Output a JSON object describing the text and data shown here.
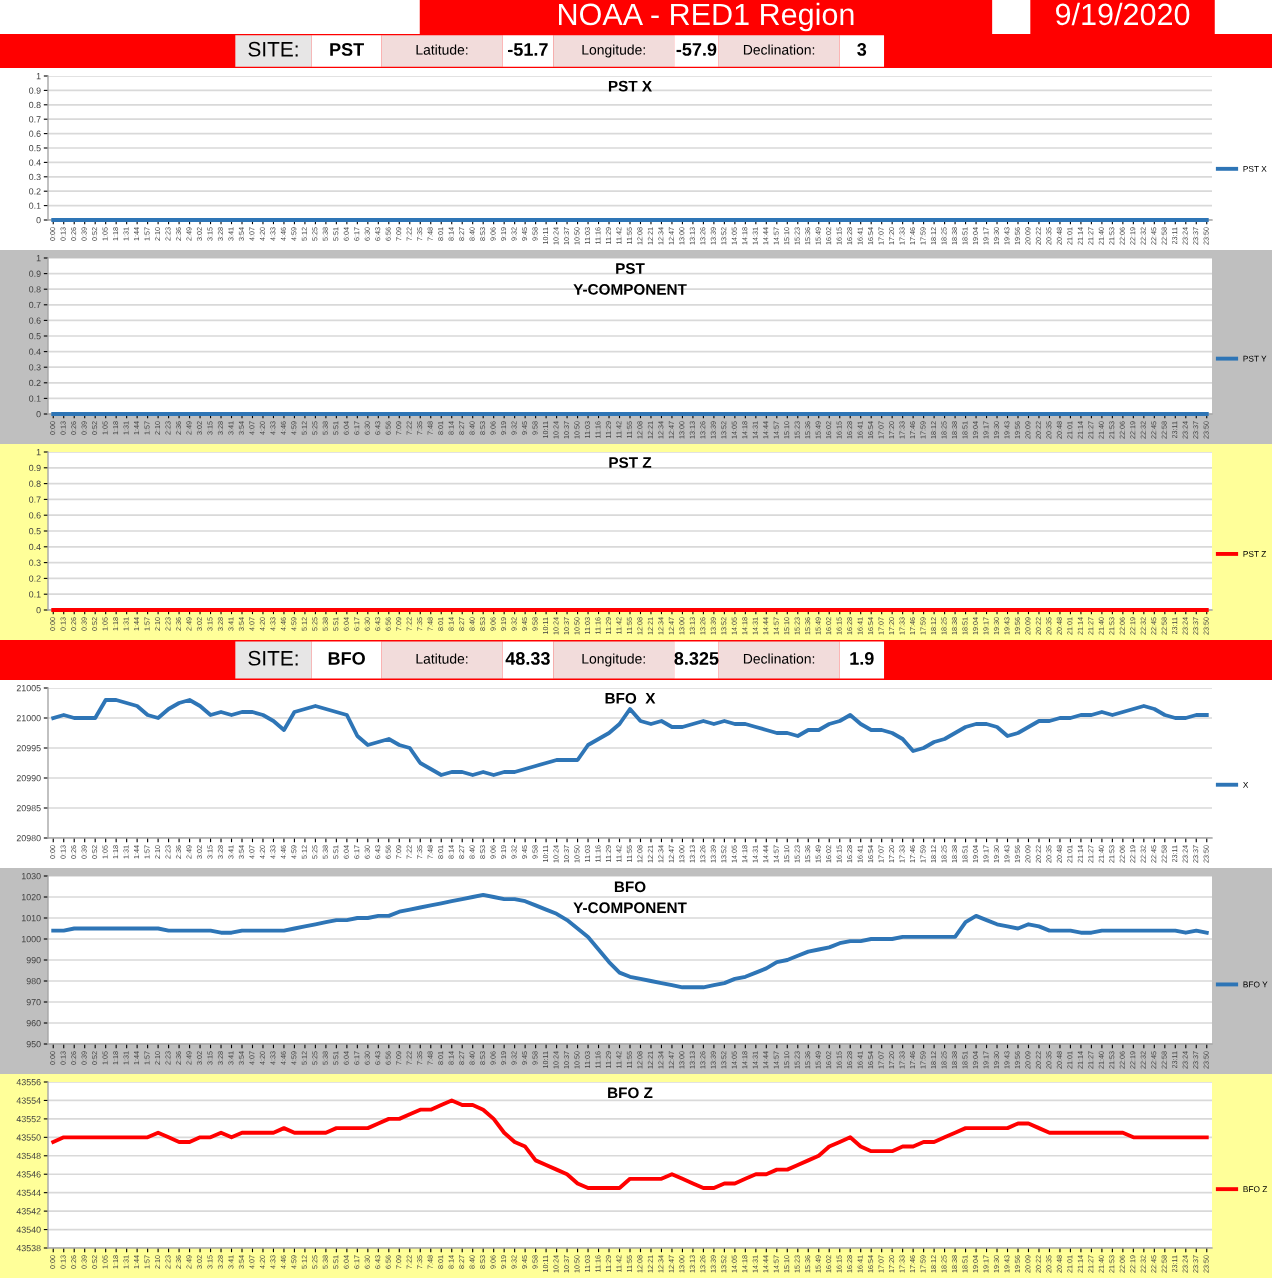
{
  "chart_data": [
    {
      "type": "other",
      "title": "NOAA - RED1 Region",
      "annotations": [
        "9/19/2020",
        "SITE:",
        "PST",
        "Latitude:",
        "-51.7",
        "Longitude:",
        "-57.9",
        "Declination:",
        "3"
      ]
    },
    {
      "type": "line",
      "title": "PST X",
      "categories": [
        "0:00",
        "0:13",
        "0:26",
        "0:39",
        "0:52",
        "1:05",
        "1:18",
        "1:31",
        "1:44",
        "1:57",
        "2:10",
        "2:23",
        "2:36",
        "2:49",
        "3:02",
        "3:15",
        "3:28",
        "3:41",
        "3:54",
        "4:07",
        "4:20",
        "4:33",
        "4:46",
        "4:59",
        "5:12",
        "5:25",
        "5:38",
        "5:51",
        "6:04",
        "6:17",
        "6:30",
        "6:43",
        "6:56",
        "7:09",
        "7:22",
        "7:35",
        "7:48",
        "8:01",
        "8:14",
        "8:27",
        "8:40",
        "8:53",
        "9:06",
        "9:19",
        "9:32",
        "9:45",
        "9:58",
        "10:11",
        "10:24",
        "10:37",
        "10:50",
        "11:03",
        "11:16",
        "11:29",
        "11:42",
        "11:55",
        "12:08",
        "12:21",
        "12:34",
        "12:47",
        "13:00",
        "13:13",
        "13:26",
        "13:39",
        "13:52",
        "14:05",
        "14:18",
        "14:31",
        "14:44",
        "14:57",
        "15:10",
        "15:23",
        "15:36",
        "15:49",
        "16:02",
        "16:15",
        "16:28",
        "16:41",
        "16:54",
        "17:07",
        "17:20",
        "17:33",
        "17:46",
        "17:59",
        "18:12",
        "18:25",
        "18:38",
        "18:51",
        "19:04",
        "19:17",
        "19:30",
        "19:43",
        "19:56",
        "20:09",
        "20:22",
        "20:35",
        "20:48",
        "21:01",
        "21:14",
        "21:27",
        "21:40",
        "21:53",
        "22:06",
        "22:19",
        "22:32",
        "22:45",
        "22:58",
        "23:11",
        "23:24",
        "23:37",
        "23:50"
      ],
      "series": [
        {
          "name": "PST X",
          "color": "#2e75b6",
          "values": [
            0,
            0,
            0,
            0,
            0,
            0,
            0,
            0,
            0,
            0,
            0,
            0,
            0,
            0,
            0,
            0,
            0,
            0,
            0,
            0,
            0,
            0,
            0,
            0,
            0,
            0,
            0,
            0,
            0,
            0,
            0,
            0,
            0,
            0,
            0,
            0,
            0,
            0,
            0,
            0,
            0,
            0,
            0,
            0,
            0,
            0,
            0,
            0,
            0,
            0,
            0,
            0,
            0,
            0,
            0,
            0,
            0,
            0,
            0,
            0,
            0,
            0,
            0,
            0,
            0,
            0,
            0,
            0,
            0,
            0,
            0,
            0,
            0,
            0,
            0,
            0,
            0,
            0,
            0,
            0,
            0,
            0,
            0,
            0,
            0,
            0,
            0,
            0,
            0,
            0,
            0,
            0,
            0,
            0,
            0,
            0,
            0,
            0,
            0,
            0,
            0,
            0,
            0,
            0,
            0,
            0,
            0,
            0,
            0,
            0,
            0
          ]
        }
      ],
      "ylim": [
        0,
        1
      ],
      "yticks": [
        0,
        0.1,
        0.2,
        0.3,
        0.4,
        0.5,
        0.6,
        0.7,
        0.8,
        0.9,
        1
      ],
      "grid": "y",
      "legend": "right"
    },
    {
      "type": "line",
      "title": "PST\nY-COMPONENT",
      "categories": [
        "0:00",
        "0:13",
        "0:26",
        "0:39",
        "0:52",
        "1:05",
        "1:18",
        "1:31",
        "1:44",
        "1:57",
        "2:10",
        "2:23",
        "2:36",
        "2:49",
        "3:02",
        "3:15",
        "3:28",
        "3:41",
        "3:54",
        "4:07",
        "4:20",
        "4:33",
        "4:46",
        "4:59",
        "5:12",
        "5:25",
        "5:38",
        "5:51",
        "6:04",
        "6:17",
        "6:30",
        "6:43",
        "6:56",
        "7:09",
        "7:22",
        "7:35",
        "7:48",
        "8:01",
        "8:14",
        "8:27",
        "8:40",
        "8:53",
        "9:06",
        "9:19",
        "9:32",
        "9:45",
        "9:58",
        "10:11",
        "10:24",
        "10:37",
        "10:50",
        "11:03",
        "11:16",
        "11:29",
        "11:42",
        "11:55",
        "12:08",
        "12:21",
        "12:34",
        "12:47",
        "13:00",
        "13:13",
        "13:26",
        "13:39",
        "13:52",
        "14:05",
        "14:18",
        "14:31",
        "14:44",
        "14:57",
        "15:10",
        "15:23",
        "15:36",
        "15:49",
        "16:02",
        "16:15",
        "16:28",
        "16:41",
        "16:54",
        "17:07",
        "17:20",
        "17:33",
        "17:46",
        "17:59",
        "18:12",
        "18:25",
        "18:38",
        "18:51",
        "19:04",
        "19:17",
        "19:30",
        "19:43",
        "19:56",
        "20:09",
        "20:22",
        "20:35",
        "20:48",
        "21:01",
        "21:14",
        "21:27",
        "21:40",
        "21:53",
        "22:06",
        "22:19",
        "22:32",
        "22:45",
        "22:58",
        "23:11",
        "23:24",
        "23:37",
        "23:50"
      ],
      "series": [
        {
          "name": "PST Y",
          "color": "#2e75b6",
          "values": [
            0,
            0,
            0,
            0,
            0,
            0,
            0,
            0,
            0,
            0,
            0,
            0,
            0,
            0,
            0,
            0,
            0,
            0,
            0,
            0,
            0,
            0,
            0,
            0,
            0,
            0,
            0,
            0,
            0,
            0,
            0,
            0,
            0,
            0,
            0,
            0,
            0,
            0,
            0,
            0,
            0,
            0,
            0,
            0,
            0,
            0,
            0,
            0,
            0,
            0,
            0,
            0,
            0,
            0,
            0,
            0,
            0,
            0,
            0,
            0,
            0,
            0,
            0,
            0,
            0,
            0,
            0,
            0,
            0,
            0,
            0,
            0,
            0,
            0,
            0,
            0,
            0,
            0,
            0,
            0,
            0,
            0,
            0,
            0,
            0,
            0,
            0,
            0,
            0,
            0,
            0,
            0,
            0,
            0,
            0,
            0,
            0,
            0,
            0,
            0,
            0,
            0,
            0,
            0,
            0,
            0,
            0,
            0,
            0,
            0,
            0
          ]
        }
      ],
      "ylim": [
        0,
        1
      ],
      "yticks": [
        0,
        0.1,
        0.2,
        0.3,
        0.4,
        0.5,
        0.6,
        0.7,
        0.8,
        0.9,
        1
      ],
      "grid": "y",
      "legend": "right"
    },
    {
      "type": "line",
      "title": "PST Z",
      "categories": [
        "0:00",
        "0:13",
        "0:26",
        "0:39",
        "0:52",
        "1:05",
        "1:18",
        "1:31",
        "1:44",
        "1:57",
        "2:10",
        "2:23",
        "2:36",
        "2:49",
        "3:02",
        "3:15",
        "3:28",
        "3:41",
        "3:54",
        "4:07",
        "4:20",
        "4:33",
        "4:46",
        "4:59",
        "5:12",
        "5:25",
        "5:38",
        "5:51",
        "6:04",
        "6:17",
        "6:30",
        "6:43",
        "6:56",
        "7:09",
        "7:22",
        "7:35",
        "7:48",
        "8:01",
        "8:14",
        "8:27",
        "8:40",
        "8:53",
        "9:06",
        "9:19",
        "9:32",
        "9:45",
        "9:58",
        "10:11",
        "10:24",
        "10:37",
        "10:50",
        "11:03",
        "11:16",
        "11:29",
        "11:42",
        "11:55",
        "12:08",
        "12:21",
        "12:34",
        "12:47",
        "13:00",
        "13:13",
        "13:26",
        "13:39",
        "13:52",
        "14:05",
        "14:18",
        "14:31",
        "14:44",
        "14:57",
        "15:10",
        "15:23",
        "15:36",
        "15:49",
        "16:02",
        "16:15",
        "16:28",
        "16:41",
        "16:54",
        "17:07",
        "17:20",
        "17:33",
        "17:46",
        "17:59",
        "18:12",
        "18:25",
        "18:38",
        "18:51",
        "19:04",
        "19:17",
        "19:30",
        "19:43",
        "19:56",
        "20:09",
        "20:22",
        "20:35",
        "20:48",
        "21:01",
        "21:14",
        "21:27",
        "21:40",
        "21:53",
        "22:06",
        "22:19",
        "22:32",
        "22:45",
        "22:58",
        "23:11",
        "23:24",
        "23:37",
        "23:50"
      ],
      "series": [
        {
          "name": "PST Z",
          "color": "#ff0000",
          "values": [
            0,
            0,
            0,
            0,
            0,
            0,
            0,
            0,
            0,
            0,
            0,
            0,
            0,
            0,
            0,
            0,
            0,
            0,
            0,
            0,
            0,
            0,
            0,
            0,
            0,
            0,
            0,
            0,
            0,
            0,
            0,
            0,
            0,
            0,
            0,
            0,
            0,
            0,
            0,
            0,
            0,
            0,
            0,
            0,
            0,
            0,
            0,
            0,
            0,
            0,
            0,
            0,
            0,
            0,
            0,
            0,
            0,
            0,
            0,
            0,
            0,
            0,
            0,
            0,
            0,
            0,
            0,
            0,
            0,
            0,
            0,
            0,
            0,
            0,
            0,
            0,
            0,
            0,
            0,
            0,
            0,
            0,
            0,
            0,
            0,
            0,
            0,
            0,
            0,
            0,
            0,
            0,
            0,
            0,
            0,
            0,
            0,
            0,
            0,
            0,
            0,
            0,
            0,
            0,
            0,
            0,
            0,
            0,
            0,
            0,
            0
          ]
        }
      ],
      "ylim": [
        0,
        1
      ],
      "yticks": [
        0,
        0.1,
        0.2,
        0.3,
        0.4,
        0.5,
        0.6,
        0.7,
        0.8,
        0.9,
        1
      ],
      "grid": "y",
      "legend": "right"
    },
    {
      "type": "other",
      "annotations": [
        "SITE:",
        "BFO",
        "Latitude:",
        "48.33",
        "Longitude:",
        "8.325",
        "Declination:",
        "1.9"
      ]
    },
    {
      "type": "line",
      "title": "BFO  X",
      "categories": [
        "0:00",
        "0:13",
        "0:26",
        "0:39",
        "0:52",
        "1:05",
        "1:18",
        "1:31",
        "1:44",
        "1:57",
        "2:10",
        "2:23",
        "2:36",
        "2:49",
        "3:02",
        "3:15",
        "3:28",
        "3:41",
        "3:54",
        "4:07",
        "4:20",
        "4:33",
        "4:46",
        "4:59",
        "5:12",
        "5:25",
        "5:38",
        "5:51",
        "6:04",
        "6:17",
        "6:30",
        "6:43",
        "6:56",
        "7:09",
        "7:22",
        "7:35",
        "7:48",
        "8:01",
        "8:14",
        "8:27",
        "8:40",
        "8:53",
        "9:06",
        "9:19",
        "9:32",
        "9:45",
        "9:58",
        "10:11",
        "10:24",
        "10:37",
        "10:50",
        "11:03",
        "11:16",
        "11:29",
        "11:42",
        "11:55",
        "12:08",
        "12:21",
        "12:34",
        "12:47",
        "13:00",
        "13:13",
        "13:26",
        "13:39",
        "13:52",
        "14:05",
        "14:18",
        "14:31",
        "14:44",
        "14:57",
        "15:10",
        "15:23",
        "15:36",
        "15:49",
        "16:02",
        "16:15",
        "16:28",
        "16:41",
        "16:54",
        "17:07",
        "17:20",
        "17:33",
        "17:46",
        "17:59",
        "18:12",
        "18:25",
        "18:38",
        "18:51",
        "19:04",
        "19:17",
        "19:30",
        "19:43",
        "19:56",
        "20:09",
        "20:22",
        "20:35",
        "20:48",
        "21:01",
        "21:14",
        "21:27",
        "21:40",
        "21:53",
        "22:06",
        "22:19",
        "22:32",
        "22:45",
        "22:58",
        "23:11",
        "23:24",
        "23:37",
        "23:50"
      ],
      "series": [
        {
          "name": "X",
          "color": "#2e75b6",
          "values": [
            21000,
            21000.5,
            21000,
            21000,
            21000,
            21003,
            21003,
            21002.5,
            21002,
            21000.5,
            21000,
            21001.5,
            21002.5,
            21003,
            21002,
            21000.5,
            21001,
            21000.5,
            21001,
            21001,
            21000.5,
            20999.5,
            20998,
            21001,
            21001.5,
            21002,
            21001.5,
            21001,
            21000.5,
            20997,
            20995.5,
            20996,
            20996.5,
            20995.5,
            20995,
            20992.5,
            20991.5,
            20990.5,
            20991,
            20991,
            20990.5,
            20991,
            20990.5,
            20991,
            20991,
            20991.5,
            20992,
            20992.5,
            20993,
            20993,
            20993,
            20995.5,
            20996.5,
            20997.5,
            20999,
            21001.5,
            20999.5,
            20999,
            20999.5,
            20998.5,
            20998.5,
            20999,
            20999.5,
            20999,
            20999.5,
            20999,
            20999,
            20998.5,
            20998,
            20997.5,
            20997.5,
            20997,
            20998,
            20998,
            20999,
            20999.5,
            21000.5,
            20999,
            20998,
            20998,
            20997.5,
            20996.5,
            20994.5,
            20995,
            20996,
            20996.5,
            20997.5,
            20998.5,
            20999,
            20999,
            20998.5,
            20997,
            20997.5,
            20998.5,
            20999.5,
            20999.5,
            21000,
            21000,
            21000.5,
            21000.5,
            21001,
            21000.5,
            21001,
            21001.5,
            21002,
            21001.5,
            21000.5,
            21000,
            21000,
            21000.5,
            21000.5
          ]
        }
      ],
      "ylim": [
        20980,
        21005
      ],
      "yticks": [
        20980,
        20985,
        20990,
        20995,
        21000,
        21005
      ],
      "grid": "y",
      "legend": "right"
    },
    {
      "type": "line",
      "title": "BFO\nY-COMPONENT",
      "categories": [
        "0:00",
        "0:13",
        "0:26",
        "0:39",
        "0:52",
        "1:05",
        "1:18",
        "1:31",
        "1:44",
        "1:57",
        "2:10",
        "2:23",
        "2:36",
        "2:49",
        "3:02",
        "3:15",
        "3:28",
        "3:41",
        "3:54",
        "4:07",
        "4:20",
        "4:33",
        "4:46",
        "4:59",
        "5:12",
        "5:25",
        "5:38",
        "5:51",
        "6:04",
        "6:17",
        "6:30",
        "6:43",
        "6:56",
        "7:09",
        "7:22",
        "7:35",
        "7:48",
        "8:01",
        "8:14",
        "8:27",
        "8:40",
        "8:53",
        "9:06",
        "9:19",
        "9:32",
        "9:45",
        "9:58",
        "10:11",
        "10:24",
        "10:37",
        "10:50",
        "11:03",
        "11:16",
        "11:29",
        "11:42",
        "11:55",
        "12:08",
        "12:21",
        "12:34",
        "12:47",
        "13:00",
        "13:13",
        "13:26",
        "13:39",
        "13:52",
        "14:05",
        "14:18",
        "14:31",
        "14:44",
        "14:57",
        "15:10",
        "15:23",
        "15:36",
        "15:49",
        "16:02",
        "16:15",
        "16:28",
        "16:41",
        "16:54",
        "17:07",
        "17:20",
        "17:33",
        "17:46",
        "17:59",
        "18:12",
        "18:25",
        "18:38",
        "18:51",
        "19:04",
        "19:17",
        "19:30",
        "19:43",
        "19:56",
        "20:09",
        "20:22",
        "20:35",
        "20:48",
        "21:01",
        "21:14",
        "21:27",
        "21:40",
        "21:53",
        "22:06",
        "22:19",
        "22:32",
        "22:45",
        "22:58",
        "23:11",
        "23:24",
        "23:37",
        "23:50"
      ],
      "series": [
        {
          "name": "BFO Y",
          "color": "#2e75b6",
          "values": [
            1004,
            1004,
            1005,
            1005,
            1005,
            1005,
            1005,
            1005,
            1005,
            1005,
            1005,
            1004,
            1004,
            1004,
            1004,
            1004,
            1003,
            1003,
            1004,
            1004,
            1004,
            1004,
            1004,
            1005,
            1006,
            1007,
            1008,
            1009,
            1009,
            1010,
            1010,
            1011,
            1011,
            1013,
            1014,
            1015,
            1016,
            1017,
            1018,
            1019,
            1020,
            1021,
            1020,
            1019,
            1019,
            1018,
            1016,
            1014,
            1012,
            1009,
            1005,
            1001,
            995,
            989,
            984,
            982,
            981,
            980,
            979,
            978,
            977,
            977,
            977,
            978,
            979,
            981,
            982,
            984,
            986,
            989,
            990,
            992,
            994,
            995,
            996,
            998,
            999,
            999,
            1000,
            1000,
            1000,
            1001,
            1001,
            1001,
            1001,
            1001,
            1001,
            1008,
            1011,
            1009,
            1007,
            1006,
            1005,
            1007,
            1006,
            1004,
            1004,
            1004,
            1003,
            1003,
            1004,
            1004,
            1004,
            1004,
            1004,
            1004,
            1004,
            1004,
            1003,
            1004,
            1003
          ]
        }
      ],
      "ylim": [
        950,
        1030
      ],
      "yticks": [
        950,
        960,
        970,
        980,
        990,
        1000,
        1010,
        1020,
        1030
      ],
      "grid": "y",
      "legend": "right"
    },
    {
      "type": "line",
      "title": "BFO Z",
      "categories": [
        "0:00",
        "0:13",
        "0:26",
        "0:39",
        "0:52",
        "1:05",
        "1:18",
        "1:31",
        "1:44",
        "1:57",
        "2:10",
        "2:23",
        "2:36",
        "2:49",
        "3:02",
        "3:15",
        "3:28",
        "3:41",
        "3:54",
        "4:07",
        "4:20",
        "4:33",
        "4:46",
        "4:59",
        "5:12",
        "5:25",
        "5:38",
        "5:51",
        "6:04",
        "6:17",
        "6:30",
        "6:43",
        "6:56",
        "7:09",
        "7:22",
        "7:35",
        "7:48",
        "8:01",
        "8:14",
        "8:27",
        "8:40",
        "8:53",
        "9:06",
        "9:19",
        "9:32",
        "9:45",
        "9:58",
        "10:11",
        "10:24",
        "10:37",
        "10:50",
        "11:03",
        "11:16",
        "11:29",
        "11:42",
        "11:55",
        "12:08",
        "12:21",
        "12:34",
        "12:47",
        "13:00",
        "13:13",
        "13:26",
        "13:39",
        "13:52",
        "14:05",
        "14:18",
        "14:31",
        "14:44",
        "14:57",
        "15:10",
        "15:23",
        "15:36",
        "15:49",
        "16:02",
        "16:15",
        "16:28",
        "16:41",
        "16:54",
        "17:07",
        "17:20",
        "17:33",
        "17:46",
        "17:59",
        "18:12",
        "18:25",
        "18:38",
        "18:51",
        "19:04",
        "19:17",
        "19:30",
        "19:43",
        "19:56",
        "20:09",
        "20:22",
        "20:35",
        "20:48",
        "21:01",
        "21:14",
        "21:27",
        "21:40",
        "21:53",
        "22:06",
        "22:19",
        "22:32",
        "22:45",
        "22:58",
        "23:11",
        "23:24",
        "23:37",
        "23:50"
      ],
      "series": [
        {
          "name": "BFO Z",
          "color": "#ff0000",
          "values": [
            43549.5,
            43550,
            43550,
            43550,
            43550,
            43550,
            43550,
            43550,
            43550,
            43550,
            43550.5,
            43550,
            43549.5,
            43549.5,
            43550,
            43550,
            43550.5,
            43550,
            43550.5,
            43550.5,
            43550.5,
            43550.5,
            43551,
            43550.5,
            43550.5,
            43550.5,
            43550.5,
            43551,
            43551,
            43551,
            43551,
            43551.5,
            43552,
            43552,
            43552.5,
            43553,
            43553,
            43553.5,
            43554,
            43553.5,
            43553.5,
            43553,
            43552,
            43550.5,
            43549.5,
            43549,
            43547.5,
            43547,
            43546.5,
            43546,
            43545,
            43544.5,
            43544.5,
            43544.5,
            43544.5,
            43545.5,
            43545.5,
            43545.5,
            43545.5,
            43546,
            43545.5,
            43545,
            43544.5,
            43544.5,
            43545,
            43545,
            43545.5,
            43546,
            43546,
            43546.5,
            43546.5,
            43547,
            43547.5,
            43548,
            43549,
            43549.5,
            43550,
            43549,
            43548.5,
            43548.5,
            43548.5,
            43549,
            43549,
            43549.5,
            43549.5,
            43550,
            43550.5,
            43551,
            43551,
            43551,
            43551,
            43551,
            43551.5,
            43551.5,
            43551,
            43550.5,
            43550.5,
            43550.5,
            43550.5,
            43550.5,
            43550.5,
            43550.5,
            43550.5,
            43550,
            43550,
            43550,
            43550,
            43550,
            43550,
            43550,
            43550
          ]
        }
      ],
      "ylim": [
        43538,
        43556
      ],
      "yticks": [
        43538,
        43540,
        43542,
        43544,
        43546,
        43548,
        43550,
        43552,
        43554,
        43556
      ],
      "grid": "y",
      "legend": "right"
    }
  ]
}
